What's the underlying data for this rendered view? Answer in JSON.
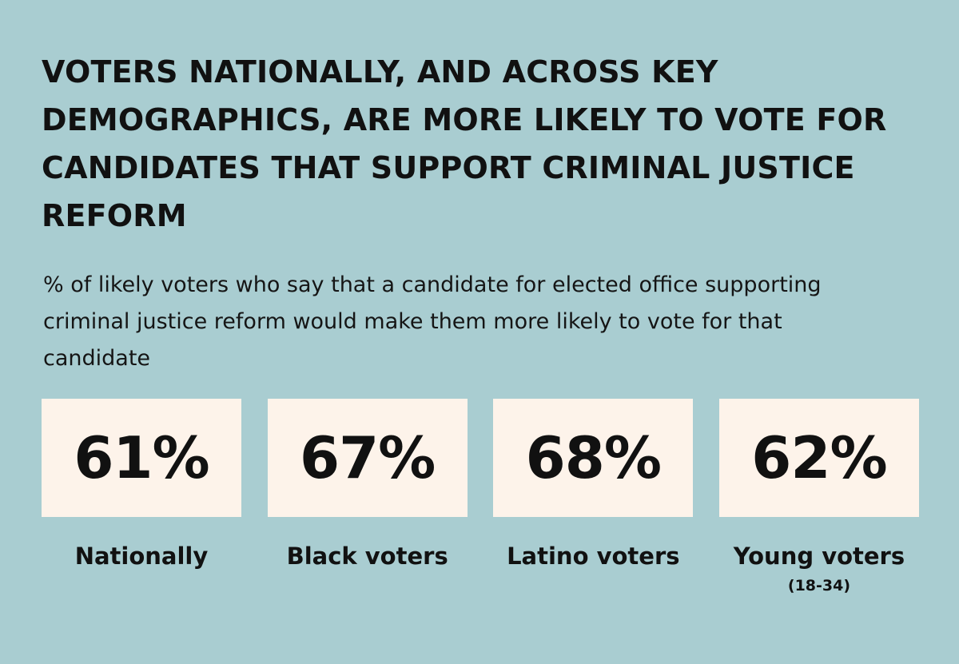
{
  "colors": {
    "background": "#a9cdd1",
    "card": "#fdf3ea",
    "text": "#111111"
  },
  "title": "VOTERS NATIONALLY, AND ACROSS KEY DEMOGRAPHICS, ARE MORE LIKELY TO VOTE FOR CANDIDATES THAT SUPPORT CRIMINAL JUSTICE REFORM",
  "subtitle": "% of likely voters who say that a candidate for elected office supporting criminal justice reform would make them more likely to vote for that candidate",
  "chart_data": {
    "type": "table",
    "title": "VOTERS NATIONALLY, AND ACROSS KEY DEMOGRAPHICS, ARE MORE LIKELY TO VOTE FOR CANDIDATES THAT SUPPORT CRIMINAL JUSTICE REFORM",
    "subtitle": "% of likely voters who say that a candidate for elected office supporting criminal justice reform would make them more likely to vote for that candidate",
    "categories": [
      "Nationally",
      "Black voters",
      "Latino voters",
      "Young voters"
    ],
    "values": [
      61,
      67,
      68,
      62
    ],
    "value_labels": [
      "61%",
      "67%",
      "68%",
      "62%"
    ],
    "notes": [
      "",
      "",
      "",
      "(18-34)"
    ]
  }
}
